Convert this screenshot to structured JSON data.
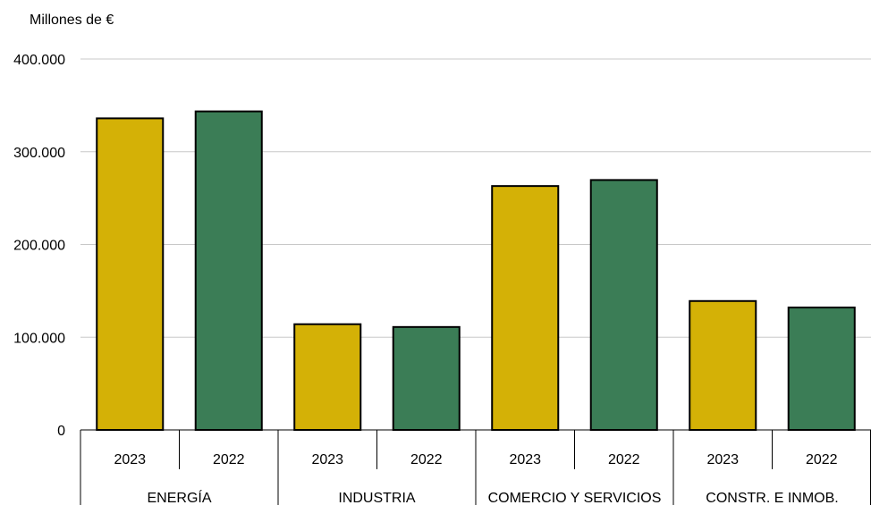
{
  "chart_data": {
    "type": "bar",
    "ylabel": "Millones de €",
    "ylim": [
      0,
      400000
    ],
    "y_ticks": [
      0,
      100000,
      200000,
      300000,
      400000
    ],
    "y_tick_labels": [
      "0",
      "100.000",
      "200.000",
      "300.000",
      "400.000"
    ],
    "grid": true,
    "groups": [
      "ENERGÍA",
      "INDUSTRIA",
      "COMERCIO Y SERVICIOS",
      "CONSTR. E INMOB."
    ],
    "series": [
      {
        "name": "2023",
        "color": "#d4b106",
        "values": [
          336000,
          114000,
          263000,
          139000
        ]
      },
      {
        "name": "2022",
        "color": "#3b7d56",
        "values": [
          343500,
          111000,
          269500,
          132000
        ]
      }
    ]
  }
}
